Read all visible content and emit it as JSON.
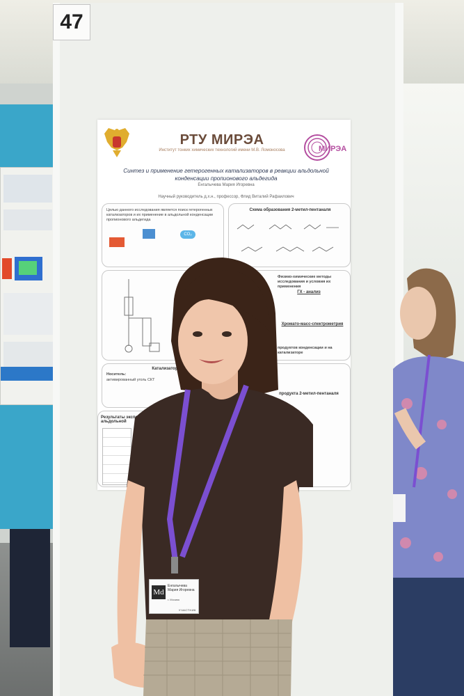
{
  "board": {
    "number": "47"
  },
  "poster": {
    "university": "РТУ МИРЭА",
    "institute": "Институт тонких химических технологий имени М.В. Ломоносова",
    "logo_text": "МИРЭА",
    "title": "Синтез и применение гетерогенных катализаторов в реакции альдольной конденсации пропионового альдегида",
    "author": "Енгалычева Мария Игоревна",
    "advisor": "Научный руководитель д.х.н., профессор, Флид Виталий Рафаилович",
    "sections": {
      "goal": "Целью данного исследования является поиск гетерогенных катализаторов и их применение в альдольной конденсации пропионового альдегида",
      "scheme": "Схема образования 2-метил-пентаналя",
      "methods": "Физико-химические методы исследования и условия их применения",
      "gc": "ГХ - анализ",
      "gcms": "Хромато-масс-спектрометрия",
      "catalyst": "Катализатор",
      "carrier_label": "Носитель:",
      "carrier": "активированный уголь СКТ",
      "results": "Результаты эксперимента альдольной",
      "product": "продукта 2-метил-пентаналя",
      "products_cond": "продуктов конденсации и на катализаторе",
      "co2": "CO₂"
    }
  },
  "badge": {
    "logo": "Md",
    "name": "Енгалычева Мария Игоревна",
    "city": "г. Москва",
    "role": "УЧАСТНИК"
  },
  "colors": {
    "lanyard": "#7b4fd1",
    "shirt": "#3a2a24",
    "hair": "#3b2418",
    "poster_title": "#6b4c3b",
    "mirea_logo": "#b44ea0"
  }
}
